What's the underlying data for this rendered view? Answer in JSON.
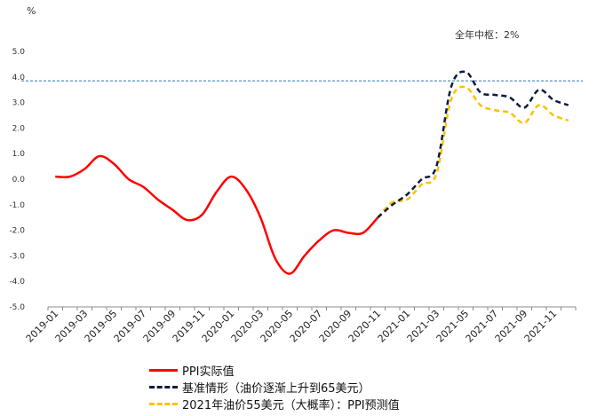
{
  "chart_data": {
    "type": "line",
    "unit_label": "%",
    "annotation": "全年中枢：2%",
    "ylim": [
      -5,
      5
    ],
    "yticks": [
      "5.0",
      "4.0",
      "3.0",
      "2.0",
      "1.0",
      "0.0",
      "-1.0",
      "-2.0",
      "-3.0",
      "-4.0",
      "-5.0"
    ],
    "x_tick_labels": [
      "2019-01",
      "2019-03",
      "2019-05",
      "2019-07",
      "2019-09",
      "2019-11",
      "2020-01",
      "2020-03",
      "2020-05",
      "2020-07",
      "2020-09",
      "2020-11",
      "2021-01",
      "2021-03",
      "2021-05",
      "2021-07",
      "2021-09",
      "2021-11"
    ],
    "reference_line": {
      "value": 3.85,
      "color": "#2e75b6"
    },
    "grid": false,
    "legend_position": "bottom",
    "series": [
      {
        "name": "PPI实际值",
        "color": "#ff0000",
        "style": "solid",
        "points": [
          [
            "2019-01",
            0.1
          ],
          [
            "2019-02",
            0.1
          ],
          [
            "2019-03",
            0.4
          ],
          [
            "2019-04",
            0.9
          ],
          [
            "2019-05",
            0.6
          ],
          [
            "2019-06",
            0.0
          ],
          [
            "2019-07",
            -0.3
          ],
          [
            "2019-08",
            -0.8
          ],
          [
            "2019-09",
            -1.2
          ],
          [
            "2019-10",
            -1.6
          ],
          [
            "2019-11",
            -1.4
          ],
          [
            "2019-12",
            -0.5
          ],
          [
            "2020-01",
            0.1
          ],
          [
            "2020-02",
            -0.4
          ],
          [
            "2020-03",
            -1.5
          ],
          [
            "2020-04",
            -3.1
          ],
          [
            "2020-05",
            -3.7
          ],
          [
            "2020-06",
            -3.0
          ],
          [
            "2020-07",
            -2.4
          ],
          [
            "2020-08",
            -2.0
          ],
          [
            "2020-09",
            -2.1
          ],
          [
            "2020-10",
            -2.1
          ],
          [
            "2020-11",
            -1.5
          ]
        ]
      },
      {
        "name": "基准情形（油价逐渐上升到65美元）",
        "color": "#0d1b3e",
        "style": "dashed",
        "points": [
          [
            "2020-11",
            -1.5
          ],
          [
            "2020-12",
            -1.0
          ],
          [
            "2021-01",
            -0.6
          ],
          [
            "2021-02",
            0.0
          ],
          [
            "2021-03",
            0.5
          ],
          [
            "2021-04",
            3.6
          ],
          [
            "2021-05",
            4.2
          ],
          [
            "2021-06",
            3.4
          ],
          [
            "2021-07",
            3.3
          ],
          [
            "2021-08",
            3.2
          ],
          [
            "2021-09",
            2.8
          ],
          [
            "2021-10",
            3.5
          ],
          [
            "2021-11",
            3.1
          ],
          [
            "2021-12",
            2.9
          ]
        ]
      },
      {
        "name": "2021年油价55美元（大概率）：PPI预测值",
        "color": "#ffc000",
        "style": "dashed",
        "points": [
          [
            "2020-11",
            -1.5
          ],
          [
            "2020-12",
            -0.9
          ],
          [
            "2021-01",
            -0.8
          ],
          [
            "2021-02",
            -0.2
          ],
          [
            "2021-03",
            0.2
          ],
          [
            "2021-04",
            3.1
          ],
          [
            "2021-05",
            3.6
          ],
          [
            "2021-06",
            2.9
          ],
          [
            "2021-07",
            2.7
          ],
          [
            "2021-08",
            2.6
          ],
          [
            "2021-09",
            2.2
          ],
          [
            "2021-10",
            2.9
          ],
          [
            "2021-11",
            2.5
          ],
          [
            "2021-12",
            2.3
          ]
        ]
      }
    ]
  }
}
